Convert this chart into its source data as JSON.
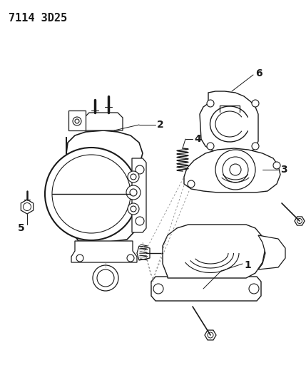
{
  "title": "7114 3D25",
  "background_color": "#ffffff",
  "line_color": "#1a1a1a",
  "figsize": [
    4.29,
    5.33
  ],
  "dpi": 100,
  "title_fontsize": 11,
  "label_fontsize": 9
}
